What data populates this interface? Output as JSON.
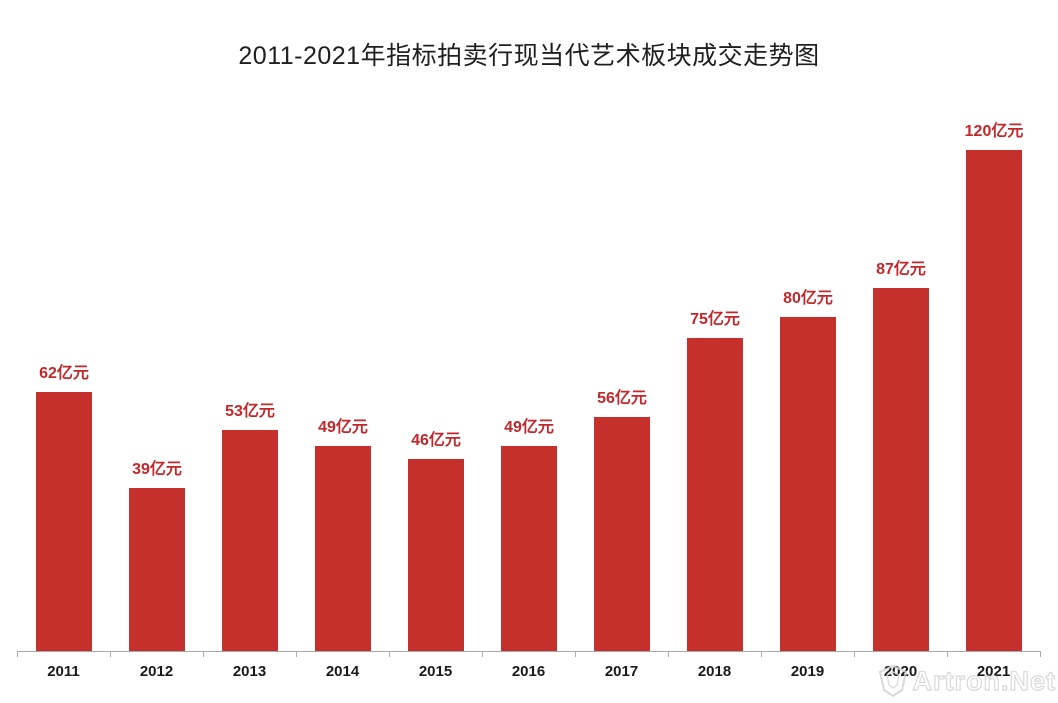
{
  "chart_data": {
    "type": "bar",
    "title": "2011-2021年指标拍卖行现当代艺术板块成交走势图",
    "categories": [
      "2011",
      "2012",
      "2013",
      "2014",
      "2015",
      "2016",
      "2017",
      "2018",
      "2019",
      "2020",
      "2021"
    ],
    "values": [
      62,
      39,
      53,
      49,
      46,
      49,
      56,
      75,
      80,
      87,
      120
    ],
    "labels": [
      "62亿元",
      "39亿元",
      "53亿元",
      "49亿元",
      "46亿元",
      "49亿元",
      "56亿元",
      "75亿元",
      "80亿元",
      "87亿元",
      "120亿元"
    ],
    "unit": "亿元",
    "xlabel": "",
    "ylabel": "",
    "ylim": [
      0,
      125
    ],
    "grid": false,
    "legend_position": "none",
    "bar_color": "#c5302d",
    "value_label_color": "#c2282b",
    "axis_color": "#a8a8a8",
    "category_label_color": "#1a1a1a"
  },
  "watermark": {
    "text": "Artron.Net",
    "logo": "artron-shield-icon",
    "color": "#d3d3d3"
  }
}
